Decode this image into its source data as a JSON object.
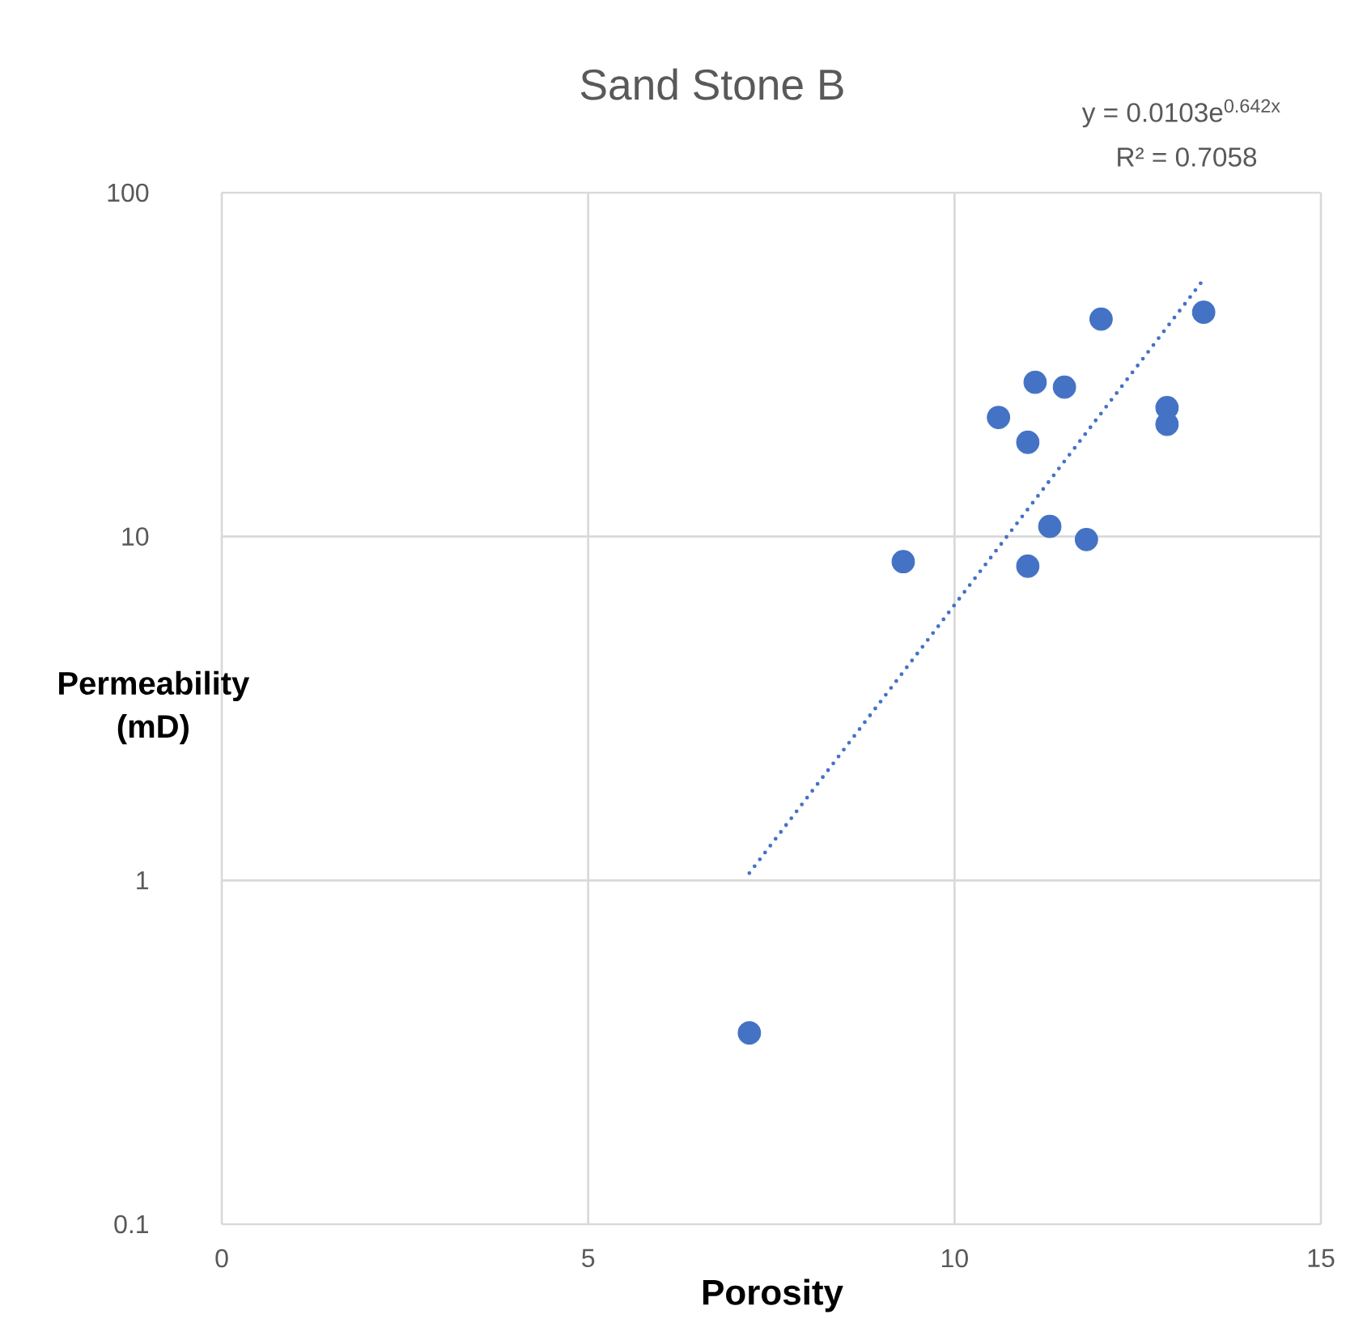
{
  "chart_data": {
    "type": "scatter",
    "title": "Sand Stone B",
    "xlabel": "Porosity",
    "ylabel": "Permeability (mD)",
    "annotations": [
      "y = 0.0103e$^{0.642x}$",
      "R² = 0.7058"
    ],
    "xlim": [
      0,
      15
    ],
    "xticks": [
      0,
      5,
      10,
      15
    ],
    "ylim": [
      0.1,
      100
    ],
    "yticks": [
      0.1,
      1,
      10,
      100
    ],
    "log": "y",
    "grid": true,
    "marker": "circle",
    "series": [
      {
        "color": "#4472c4",
        "x": [
          7.2,
          9.3,
          10.6,
          11.0,
          11.1,
          11.5,
          12.0,
          11.3,
          11.0,
          11.8,
          12.9,
          12.9,
          13.4
        ],
        "values": [
          0.36,
          8.45,
          22.2,
          18.8,
          28.1,
          27.2,
          42.9,
          10.7,
          8.2,
          9.8,
          23.7,
          21.2,
          44.9
        ]
      },
      {
        "type": "line",
        "color": "#4472c4",
        "marker": "none",
        "line_style": "dotted",
        "x": [
          7.2,
          13.4
        ],
        "values": [
          1.05,
          56
        ]
      }
    ]
  }
}
